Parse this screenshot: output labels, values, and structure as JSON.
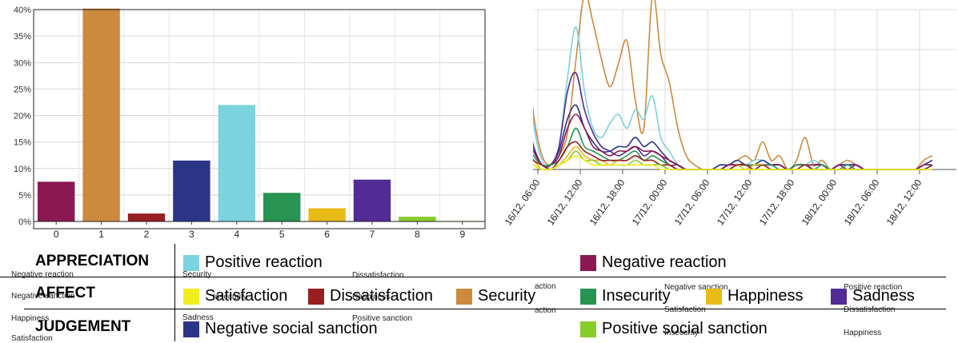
{
  "colors": {
    "positive_reaction": "#7bd3dd",
    "negative_reaction": "#8c1852",
    "satisfaction": "#f0ec1e",
    "dissatisfaction": "#981e22",
    "security": "#cd8a3e",
    "insecurity": "#279452",
    "happiness": "#e9bb17",
    "sadness": "#522b94",
    "negative_social_sanction": "#2b3587",
    "positive_social_sanction": "#88cc2c"
  },
  "chart_data": [
    {
      "type": "bar",
      "categories": [
        "0",
        "1",
        "2",
        "3",
        "4",
        "5",
        "6",
        "7",
        "8",
        "9"
      ],
      "values": [
        7.5,
        40.2,
        1.5,
        11.5,
        22.0,
        5.4,
        2.5,
        7.9,
        0.9,
        0.1
      ],
      "bar_colors": [
        "negative_reaction",
        "security",
        "dissatisfaction",
        "negative_social_sanction",
        "positive_reaction",
        "insecurity",
        "happiness",
        "sadness",
        "positive_social_sanction",
        "satisfaction"
      ],
      "yticks": [
        "0%",
        "5%",
        "10%",
        "15%",
        "20%",
        "25%",
        "30%",
        "35%",
        "40%"
      ],
      "ylim": [
        0,
        40
      ],
      "grid": true
    },
    {
      "type": "line",
      "x_ticks": [
        "16/12, 06:00",
        "16/12, 12:00",
        "16/12, 18:00",
        "17/12, 00:00",
        "17/12, 06:00",
        "17/12, 12:00",
        "17/12, 18:00",
        "18/12, 00:00",
        "18/12, 06:00",
        "18/12, 12:00"
      ],
      "grid": true,
      "x": [
        -0.3,
        -0.1,
        0.1,
        0.3,
        0.5,
        0.7,
        0.9,
        1.1,
        1.3,
        1.5,
        1.7,
        1.9,
        2.1,
        2.3,
        2.5,
        2.7,
        2.9,
        3.1,
        3.3,
        3.5,
        3.7,
        3.9,
        4.1,
        4.3,
        4.5,
        4.7,
        4.9,
        5.1,
        5.3,
        5.5,
        5.7,
        5.9,
        6.1,
        6.3,
        6.5,
        6.7,
        6.9,
        7.1,
        7.3,
        7.5,
        7.7,
        7.9,
        8.1,
        8.3,
        8.5,
        8.7,
        8.9,
        9.1,
        9.3
      ],
      "series": [
        {
          "color": "security",
          "values": [
            30,
            12,
            3,
            1,
            3,
            8,
            24,
            38,
            32,
            24,
            18,
            23,
            28,
            15,
            9,
            38,
            25,
            19,
            9,
            3,
            1,
            0,
            0,
            0,
            1,
            2,
            3,
            2,
            6,
            2,
            3,
            0,
            2,
            7,
            1,
            2,
            0,
            1,
            2,
            1,
            0,
            0,
            0,
            0,
            0,
            0,
            0,
            2,
            3
          ]
        },
        {
          "color": "positive_reaction",
          "values": [
            28,
            10,
            2,
            1,
            5,
            20,
            31,
            17,
            9,
            7,
            10,
            12,
            9,
            13,
            11,
            16,
            7,
            4,
            1,
            0,
            0,
            0,
            0,
            1,
            1,
            2,
            1,
            2,
            2,
            1,
            1,
            0,
            1,
            1,
            2,
            1,
            0,
            1,
            0,
            1,
            0,
            0,
            0,
            0,
            0,
            0,
            0,
            1,
            1
          ]
        },
        {
          "color": "negative_social_sanction",
          "values": [
            14,
            5,
            1,
            1,
            4,
            11,
            14,
            9,
            6,
            4,
            4,
            5,
            5,
            7,
            5,
            6,
            4,
            2,
            1,
            0,
            0,
            0,
            0,
            1,
            1,
            2,
            1,
            1,
            2,
            1,
            1,
            0,
            1,
            1,
            1,
            1,
            0,
            1,
            1,
            1,
            0,
            0,
            0,
            0,
            0,
            0,
            0,
            1,
            2
          ]
        },
        {
          "color": "sadness",
          "values": [
            12,
            5,
            1,
            1,
            5,
            17,
            21,
            13,
            8,
            5,
            4,
            3,
            4,
            5,
            3,
            4,
            3,
            1,
            1,
            0,
            0,
            0,
            0,
            0,
            1,
            1,
            1,
            1,
            1,
            1,
            1,
            0,
            1,
            1,
            1,
            1,
            0,
            1,
            1,
            1,
            0,
            0,
            0,
            0,
            0,
            0,
            0,
            0,
            1
          ]
        },
        {
          "color": "negative_reaction",
          "values": [
            9,
            4,
            1,
            1,
            3,
            9,
            12,
            9,
            5,
            4,
            3,
            4,
            4,
            5,
            4,
            4,
            3,
            2,
            1,
            0,
            0,
            0,
            0,
            0,
            1,
            1,
            1,
            1,
            1,
            1,
            1,
            0,
            1,
            1,
            1,
            1,
            0,
            1,
            0,
            1,
            0,
            0,
            0,
            0,
            0,
            0,
            0,
            1,
            1
          ]
        },
        {
          "color": "insecurity",
          "values": [
            7,
            3,
            1,
            1,
            2,
            5,
            9,
            5,
            4,
            3,
            2,
            2,
            3,
            4,
            2,
            3,
            2,
            1,
            0,
            0,
            0,
            0,
            0,
            0,
            0,
            1,
            1,
            1,
            1,
            1,
            0,
            0,
            1,
            1,
            0,
            1,
            0,
            0,
            1,
            0,
            0,
            0,
            0,
            0,
            0,
            0,
            0,
            0,
            1
          ]
        },
        {
          "color": "happiness",
          "values": [
            4,
            2,
            0,
            0,
            1,
            3,
            5,
            3,
            2,
            2,
            1,
            2,
            2,
            3,
            2,
            2,
            1,
            1,
            0,
            0,
            0,
            0,
            0,
            0,
            0,
            1,
            0,
            1,
            1,
            0,
            0,
            0,
            0,
            1,
            0,
            0,
            0,
            0,
            0,
            0,
            0,
            0,
            0,
            0,
            0,
            0,
            0,
            0,
            0
          ]
        },
        {
          "color": "dissatisfaction",
          "values": [
            5,
            2,
            1,
            0,
            2,
            5,
            6,
            4,
            3,
            2,
            2,
            2,
            2,
            3,
            2,
            2,
            1,
            1,
            0,
            0,
            0,
            0,
            0,
            0,
            0,
            1,
            1,
            0,
            1,
            0,
            0,
            0,
            0,
            1,
            0,
            0,
            0,
            0,
            0,
            0,
            0,
            0,
            0,
            0,
            0,
            0,
            0,
            0,
            1
          ]
        },
        {
          "color": "positive_social_sanction",
          "values": [
            3,
            1,
            0,
            0,
            1,
            2,
            4,
            2,
            2,
            1,
            1,
            1,
            1,
            2,
            1,
            1,
            1,
            0,
            0,
            0,
            0,
            0,
            0,
            0,
            0,
            0,
            0,
            0,
            0,
            0,
            0,
            0,
            0,
            0,
            0,
            0,
            0,
            0,
            0,
            0,
            0,
            0,
            0,
            0,
            0,
            0,
            0,
            0,
            0
          ]
        },
        {
          "color": "satisfaction",
          "values": [
            2,
            1,
            0,
            0,
            1,
            2,
            3,
            2,
            1,
            1,
            1,
            1,
            1,
            1,
            1,
            1,
            0,
            0,
            0,
            0,
            0,
            0,
            0,
            0,
            0,
            0,
            0,
            0,
            0,
            0,
            0,
            0,
            0,
            0,
            0,
            0,
            0,
            0,
            0,
            0,
            0,
            0,
            0,
            0,
            0,
            0,
            0,
            0,
            0
          ]
        }
      ]
    }
  ],
  "legend": {
    "categories": [
      "APPRECIATION",
      "AFFECT",
      "JUDGEMENT"
    ],
    "appreciation": [
      "Positive reaction",
      "Negative reaction"
    ],
    "affect": [
      "Satisfaction",
      "Dissatisfaction",
      "Security",
      "Insecurity",
      "Happiness",
      "Sadness"
    ],
    "judgement": [
      "Negative social sanction",
      "Positive social sanction"
    ]
  },
  "ghost_labels": {
    "col1": [
      "Negative reaction",
      "Negative sanction",
      "Happiness",
      "Satisfaction"
    ],
    "col2": [
      "Security",
      "Insecurity",
      "Sadness"
    ],
    "col3": [
      "Dissatisfaction",
      "Happiness",
      "Positive sanction"
    ],
    "col4": [
      "action",
      "action"
    ],
    "col5": [
      "Negative sanction",
      "Satisfaction",
      "Insecurity"
    ],
    "col6": [
      "Positive reaction",
      "Dissatisfaction",
      "Happiness"
    ]
  }
}
